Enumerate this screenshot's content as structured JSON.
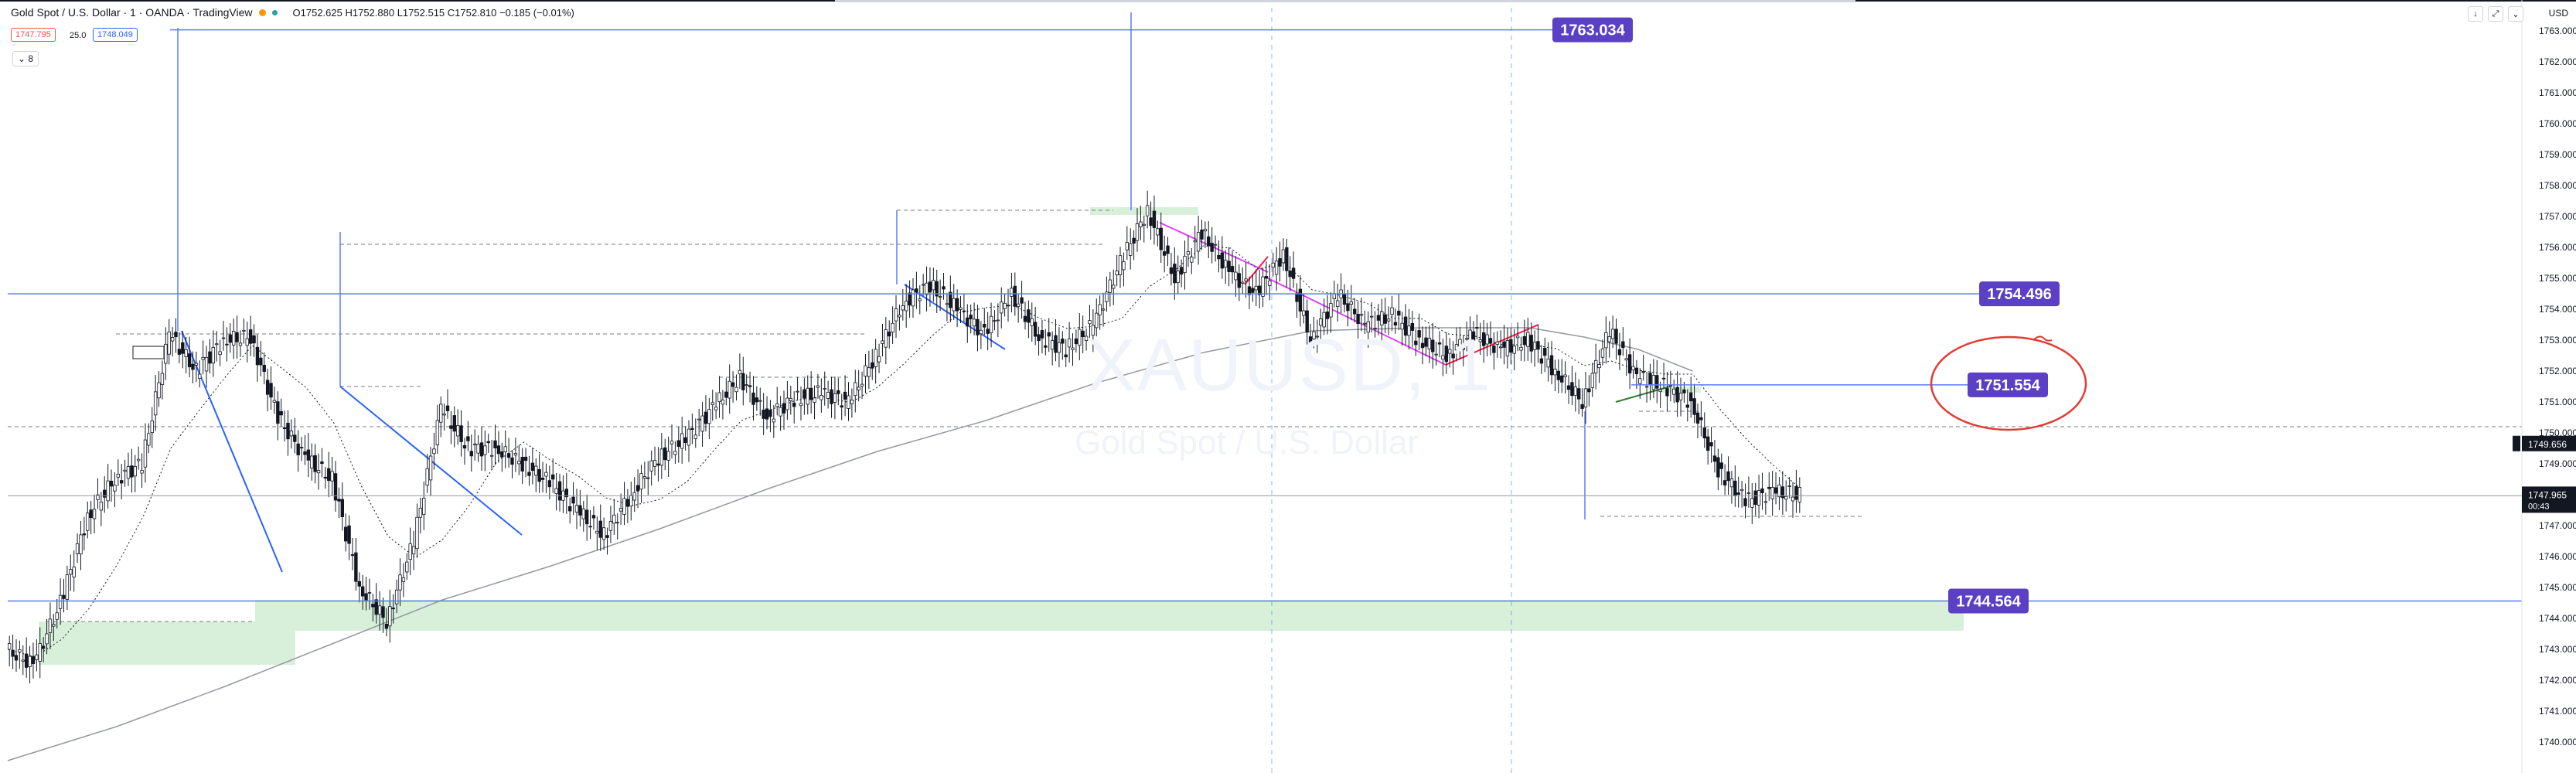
{
  "header": {
    "title": "Gold Spot / U.S. Dollar · 1 · OANDA · TradingView",
    "ohlc": "O1752.625 H1752.880 L1752.515 C1752.810 −0.185 (−0.01%)",
    "sell_price": "1747.795",
    "spread": "25.0",
    "buy_price": "1748.049",
    "collapse_label": "8",
    "currency": "USD",
    "colors": {
      "title_dot": "#ff9800",
      "live_dot": "#26a69a"
    }
  },
  "watermark": {
    "symbol": "XAUUSD, 1",
    "description": "Gold Spot / U.S. Dollar"
  },
  "horizontal_levels": [
    {
      "label": "1763.034",
      "value": 1763.034
    },
    {
      "label": "1754.496",
      "value": 1754.496
    },
    {
      "label": "1751.554",
      "value": 1751.554
    },
    {
      "label": "1744.564",
      "value": 1744.564
    }
  ],
  "price_axis": {
    "current_price": "1747.965",
    "countdown": "00:43",
    "crosshair_price": "1749.656",
    "ticks": [
      "1763.000",
      "1762.000",
      "1761.000",
      "1760.000",
      "1759.000",
      "1758.000",
      "1757.000",
      "1756.000",
      "1755.000",
      "1754.000",
      "1753.000",
      "1752.000",
      "1751.000",
      "1750.000",
      "1749.000",
      "1748.000",
      "1747.000",
      "1746.000",
      "1745.000",
      "1744.000",
      "1743.000",
      "1742.000",
      "1741.000",
      "1740.000"
    ]
  },
  "chart_data": {
    "type": "line",
    "title": "Gold Spot / U.S. Dollar · 1 · OANDA",
    "xlabel": "",
    "ylabel": "",
    "ylim": [
      1739.3,
      1763.6
    ],
    "y_scale": "linear",
    "grid": false,
    "series": [
      {
        "name": "XAUUSD",
        "x": [
          0,
          5,
          10,
          15,
          20,
          25,
          30,
          35,
          40,
          45,
          50,
          55,
          60,
          65,
          70,
          75,
          80,
          85,
          90,
          95,
          100,
          105,
          110,
          115,
          120,
          125,
          130,
          135,
          140,
          145,
          150,
          155,
          160,
          165,
          170,
          175,
          180,
          185,
          190,
          195,
          200,
          205,
          210,
          215,
          220,
          225,
          230,
          235,
          240,
          245,
          250,
          255,
          260,
          265,
          270,
          275,
          280,
          285,
          290,
          295,
          300,
          305,
          310,
          315,
          320,
          325,
          330
        ],
        "y": [
          1743.0,
          1742.5,
          1744.5,
          1747.3,
          1748.5,
          1749.0,
          1753.2,
          1752.0,
          1753.0,
          1753.1,
          1750.5,
          1749.2,
          1748.5,
          1745.0,
          1743.9,
          1746.5,
          1750.8,
          1749.5,
          1749.5,
          1749.0,
          1748.4,
          1747.5,
          1746.7,
          1748.0,
          1749.2,
          1749.8,
          1750.8,
          1751.8,
          1750.5,
          1751.1,
          1751.3,
          1751.0,
          1752.5,
          1754.2,
          1754.8,
          1754.0,
          1753.2,
          1754.5,
          1753.1,
          1752.7,
          1753.5,
          1755.5,
          1757.2,
          1755.0,
          1756.5,
          1755.2,
          1754.5,
          1755.8,
          1753.0,
          1754.5,
          1753.5,
          1753.8,
          1753.0,
          1752.5,
          1753.2,
          1752.7,
          1753.0,
          1752.0,
          1751.0,
          1753.3,
          1751.8,
          1751.5,
          1751.0,
          1748.8,
          1747.8,
          1748.1,
          1748.0
        ]
      },
      {
        "name": "Moving Average (long)",
        "x": [
          0,
          20,
          40,
          60,
          80,
          100,
          120,
          140,
          160,
          180,
          200,
          220,
          240,
          260,
          280,
          290,
          300,
          310
        ],
        "y": [
          1739.4,
          1740.5,
          1741.8,
          1743.2,
          1744.6,
          1745.7,
          1746.9,
          1748.2,
          1749.4,
          1750.4,
          1751.6,
          1752.6,
          1753.3,
          1753.4,
          1753.4,
          1753.1,
          1752.7,
          1752.0
        ]
      }
    ],
    "legend": "none"
  }
}
